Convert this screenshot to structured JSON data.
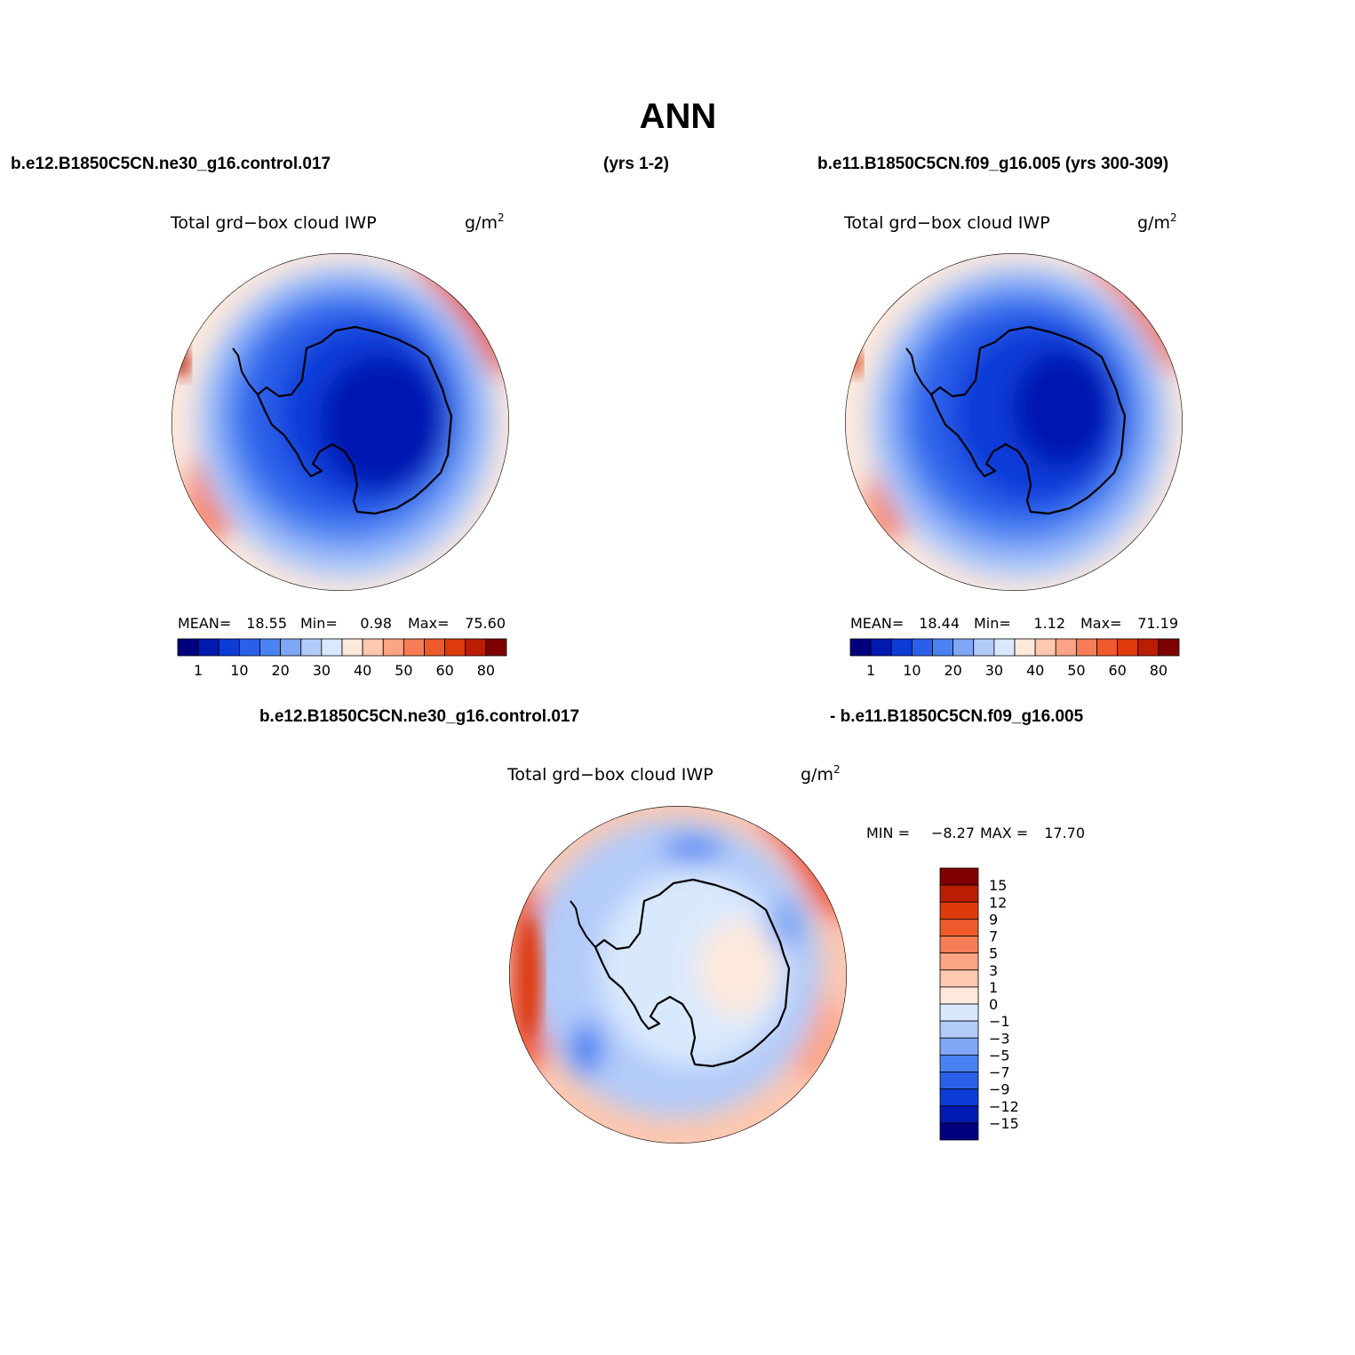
{
  "figure": {
    "title": "ANN",
    "top_left_case": "b.e12.B1850C5CN.ne30_g16.control.017",
    "top_left_years": "(yrs 1-2)",
    "top_right_case": "b.e11.B1850C5CN.f09_g16.005 (yrs 300-309)",
    "diff_left_case": "b.e12.B1850C5CN.ne30_g16.control.017",
    "diff_right_case": "- b.e11.B1850C5CN.f09_g16.005"
  },
  "panels": [
    {
      "id": "left",
      "variable": "Total grd−box cloud IWP",
      "units": "g/m",
      "units_exp": "2",
      "stats": {
        "mean_label": "MEAN=",
        "mean": "18.55",
        "min_label": "Min=",
        "min": "0.98",
        "max_label": "Max=",
        "max": "75.60"
      }
    },
    {
      "id": "right",
      "variable": "Total grd−box cloud IWP",
      "units": "g/m",
      "units_exp": "2",
      "stats": {
        "mean_label": "MEAN=",
        "mean": "18.44",
        "min_label": "Min=",
        "min": "1.12",
        "max_label": "Max=",
        "max": "71.19"
      }
    },
    {
      "id": "diff",
      "variable": "Total grd−box cloud IWP",
      "units": "g/m",
      "units_exp": "2",
      "stats": {
        "min_label": "MIN =",
        "min": "−8.27",
        "max_label": "MAX =",
        "max": "17.70"
      }
    }
  ],
  "colorbar_abs": {
    "colors": [
      "#00007f",
      "#0019b0",
      "#0d3bd8",
      "#2c5fe9",
      "#4a82f2",
      "#7fa7f6",
      "#b3cbf9",
      "#d9e9fd",
      "#fde9dc",
      "#fdc8b0",
      "#fca486",
      "#f67d58",
      "#ee5a2c",
      "#de3a0c",
      "#b91d02",
      "#7f0000"
    ],
    "tick_labels": [
      "1",
      "10",
      "20",
      "30",
      "40",
      "50",
      "60",
      "80"
    ]
  },
  "colorbar_diff": {
    "colors_top_to_bottom": [
      "#7f0000",
      "#b91d02",
      "#de3a0c",
      "#ee5a2c",
      "#f67d58",
      "#fca486",
      "#fdc8b0",
      "#fde9dc",
      "#d9e9fd",
      "#b3cbf9",
      "#7fa7f6",
      "#4a82f2",
      "#2c5fe9",
      "#0d3bd8",
      "#0019b0",
      "#00007f"
    ],
    "tick_labels": [
      "15",
      "12",
      "9",
      "7",
      "5",
      "3",
      "1",
      "0",
      "−1",
      "−3",
      "−5",
      "−7",
      "−9",
      "−12",
      "−15"
    ]
  }
}
